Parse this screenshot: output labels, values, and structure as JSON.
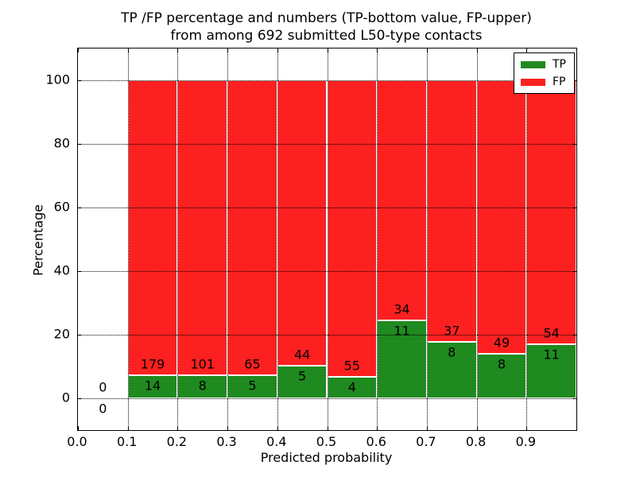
{
  "figure": {
    "title_line1": "TP /FP percentage and numbers (TP-bottom value, FP-upper)",
    "title_line2": "from among 692 submitted L50-type contacts",
    "xlabel": "Predicted probability",
    "ylabel": "Percentage"
  },
  "legend": {
    "position": "upper right",
    "entries": [
      {
        "label": "TP",
        "color": "#1f8a1f"
      },
      {
        "label": "FP",
        "color": "#fd2020"
      }
    ]
  },
  "chart_data": {
    "type": "bar",
    "stacked": true,
    "title": "TP /FP percentage and numbers (TP-bottom value, FP-upper) from among 692 submitted L50-type contacts",
    "xlabel": "Predicted probability",
    "ylabel": "Percentage",
    "xlim": [
      0.0,
      1.0
    ],
    "ylim": [
      -10,
      110
    ],
    "x_tick_labels": [
      "0.0",
      "0.1",
      "0.2",
      "0.3",
      "0.4",
      "0.5",
      "0.6",
      "0.7",
      "0.8",
      "0.9"
    ],
    "x_tick_values": [
      0.0,
      0.1,
      0.2,
      0.3,
      0.4,
      0.5,
      0.6,
      0.7,
      0.8,
      0.9
    ],
    "y_ticks": [
      0,
      20,
      40,
      60,
      80,
      100
    ],
    "grid": "dotted",
    "total_contacts": 692,
    "colors": {
      "TP": "#1f8a1f",
      "FP": "#fd2020"
    },
    "series": [
      {
        "name": "TP",
        "role": "bottom"
      },
      {
        "name": "FP",
        "role": "upper"
      }
    ],
    "bins": [
      {
        "range": [
          0.0,
          0.1
        ],
        "tp": 0,
        "fp": 0,
        "tp_pct": 0,
        "fp_pct": 0
      },
      {
        "range": [
          0.1,
          0.2
        ],
        "tp": 14,
        "fp": 179,
        "tp_pct": 7.25,
        "fp_pct": 92.75
      },
      {
        "range": [
          0.2,
          0.3
        ],
        "tp": 8,
        "fp": 101,
        "tp_pct": 7.34,
        "fp_pct": 92.66
      },
      {
        "range": [
          0.3,
          0.4
        ],
        "tp": 5,
        "fp": 65,
        "tp_pct": 7.14,
        "fp_pct": 92.86
      },
      {
        "range": [
          0.4,
          0.5
        ],
        "tp": 5,
        "fp": 44,
        "tp_pct": 10.2,
        "fp_pct": 89.8
      },
      {
        "range": [
          0.5,
          0.6
        ],
        "tp": 4,
        "fp": 55,
        "tp_pct": 6.78,
        "fp_pct": 93.22
      },
      {
        "range": [
          0.6,
          0.7
        ],
        "tp": 11,
        "fp": 34,
        "tp_pct": 24.44,
        "fp_pct": 75.56
      },
      {
        "range": [
          0.7,
          0.8
        ],
        "tp": 8,
        "fp": 37,
        "tp_pct": 17.78,
        "fp_pct": 82.22
      },
      {
        "range": [
          0.8,
          0.9
        ],
        "tp": 8,
        "fp": 49,
        "tp_pct": 14.04,
        "fp_pct": 85.96
      },
      {
        "range": [
          0.9,
          1.0
        ],
        "tp": 11,
        "fp": 54,
        "tp_pct": 16.92,
        "fp_pct": 83.08
      }
    ]
  }
}
